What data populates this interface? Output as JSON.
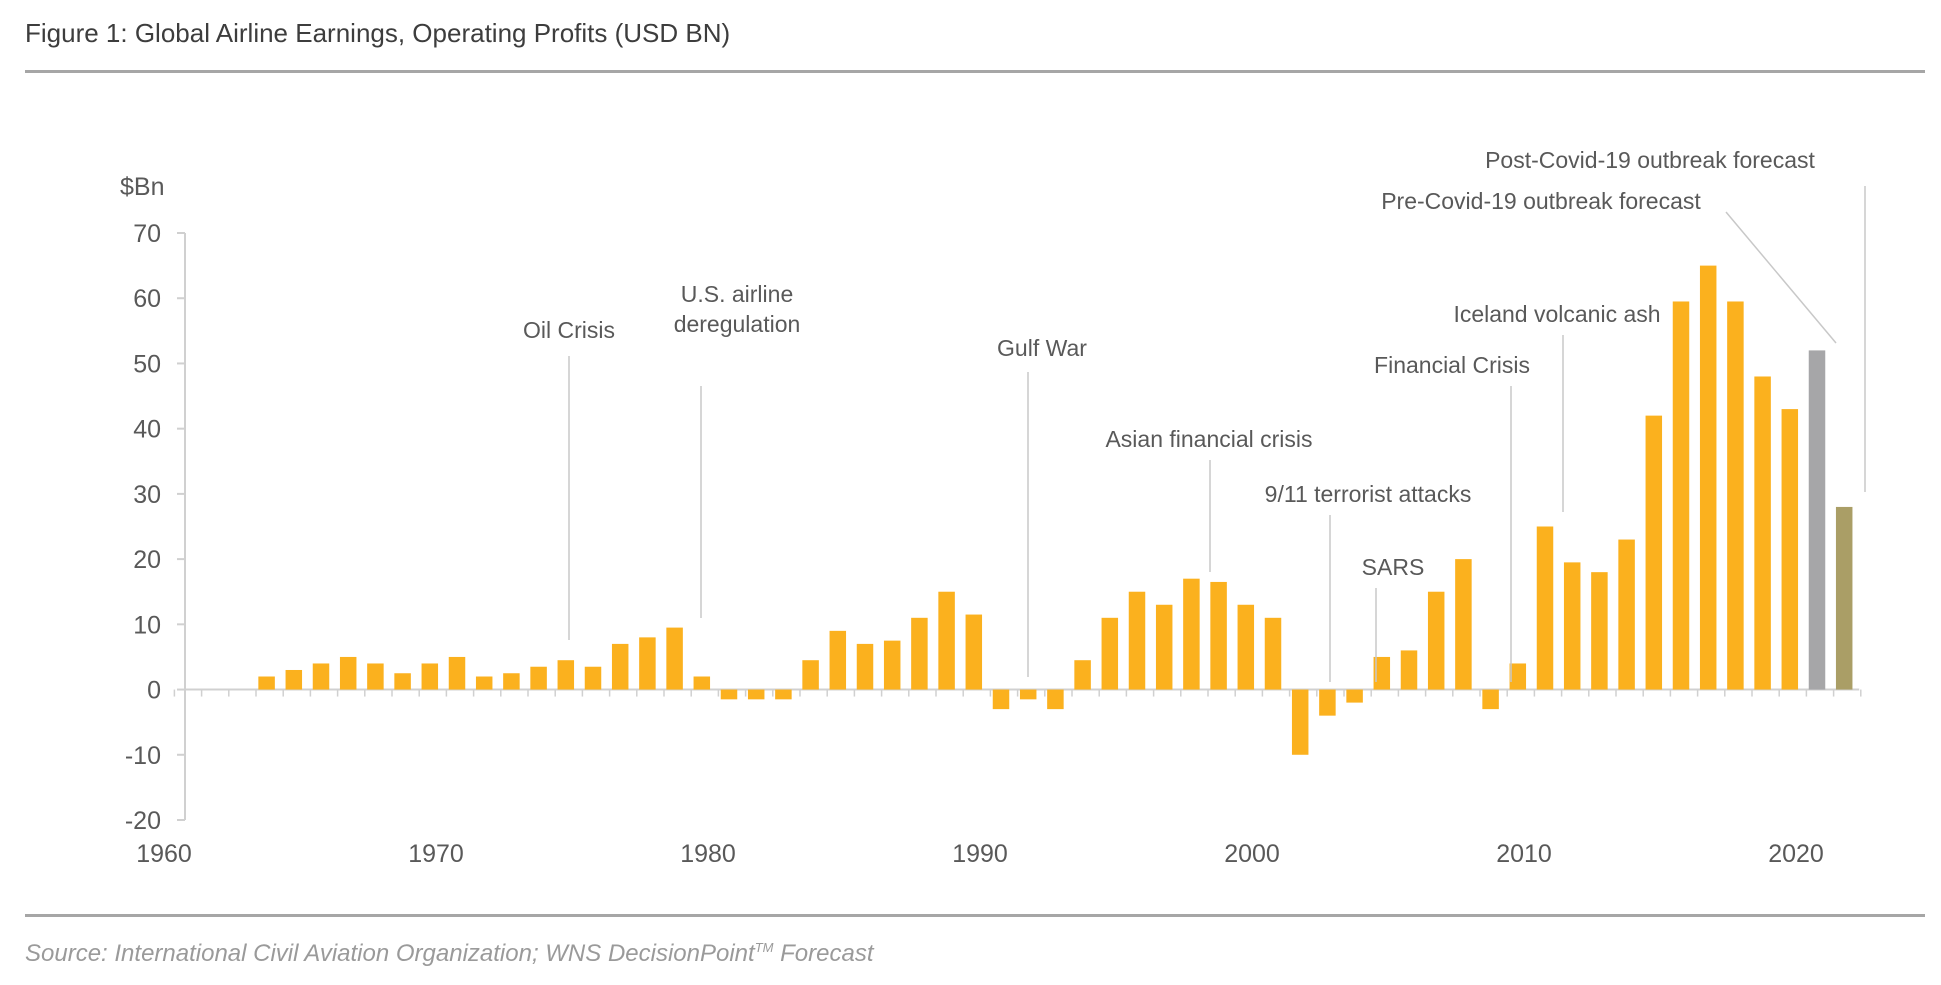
{
  "title": "Figure 1: Global Airline Earnings, Operating Profits (USD BN)",
  "source": {
    "text": "Source: International Civil Aviation Organization; WNS DecisionPoint",
    "tm": "TM",
    "suffix": " Forecast"
  },
  "colors": {
    "actual": "#fbb11e",
    "pre_covid_forecast": "#a6a6a8",
    "post_covid_forecast": "#aa9e66",
    "axis": "#d0d0d0",
    "leader": "#c8c8c8",
    "rule": "#a6a6a6"
  },
  "chart_data": {
    "type": "bar",
    "ylabel": "$Bn",
    "ylim": [
      -20,
      70
    ],
    "yticks": [
      70,
      60,
      50,
      40,
      30,
      20,
      10,
      0,
      -10,
      -20
    ],
    "xlim": [
      1960,
      2021
    ],
    "xticks": [
      1960,
      1970,
      1980,
      1990,
      2000,
      2010,
      2020
    ],
    "grid": false,
    "series": [
      {
        "x": [
          1963,
          1964,
          1965,
          1966,
          1967,
          1968,
          1969,
          1970,
          1971,
          1972,
          1973,
          1974,
          1975,
          1976,
          1977,
          1978,
          1979,
          1980,
          1981,
          1982,
          1983,
          1984,
          1985,
          1986,
          1987,
          1988,
          1989,
          1990,
          1991,
          1992,
          1993,
          1994,
          1995,
          1996,
          1997,
          1998,
          1999,
          2000,
          2001,
          2002,
          2003,
          2004,
          2005,
          2006,
          2007,
          2008,
          2009,
          2010,
          2011,
          2012,
          2013,
          2014,
          2015,
          2016,
          2017,
          2018,
          2019
        ],
        "values": [
          2,
          3,
          4,
          5,
          4,
          2.5,
          4,
          5,
          2,
          2.5,
          3.5,
          4.5,
          3.5,
          7,
          8,
          9.5,
          2,
          -1.5,
          -1.5,
          -1.5,
          4.5,
          9,
          7,
          7.5,
          11,
          15,
          11.5,
          -3,
          -1.5,
          -3,
          4.5,
          11,
          15,
          13,
          17,
          16.5,
          13,
          11,
          -10,
          -4,
          -2,
          5,
          6,
          15,
          20,
          -3,
          4,
          25,
          19.5,
          18,
          23,
          42,
          59.5,
          65,
          59.5,
          48,
          43
        ],
        "color_key": "actual"
      },
      {
        "name": "Pre-Covid-19 outbreak forecast",
        "x": [
          2020
        ],
        "values": [
          52
        ],
        "color_key": "pre_covid_forecast"
      },
      {
        "name": "Post-Covid-19 outbreak forecast",
        "x": [
          2021
        ],
        "values": [
          28
        ],
        "color_key": "post_covid_forecast"
      }
    ],
    "annotations": [
      {
        "label": "Oil Crisis",
        "year": 1973.7
      },
      {
        "label": "U.S. airline\nderegulation",
        "year": 1978.6
      },
      {
        "label": "Gulf War",
        "year": 1990.7
      },
      {
        "label": "Asian financial crisis",
        "year": 1996.9
      },
      {
        "label": "9/11 terrorist attacks",
        "year": 2001.3
      },
      {
        "label": "SARS",
        "year": 2002.9
      },
      {
        "label": "Financial Crisis",
        "year": 2008.0
      },
      {
        "label": "Iceland volcanic ash",
        "year": 2009.9
      },
      {
        "label": "Pre-Covid-19 outbreak forecast",
        "year": 2020
      },
      {
        "label": "Post-Covid-19 outbreak forecast",
        "year": 2021
      }
    ]
  }
}
